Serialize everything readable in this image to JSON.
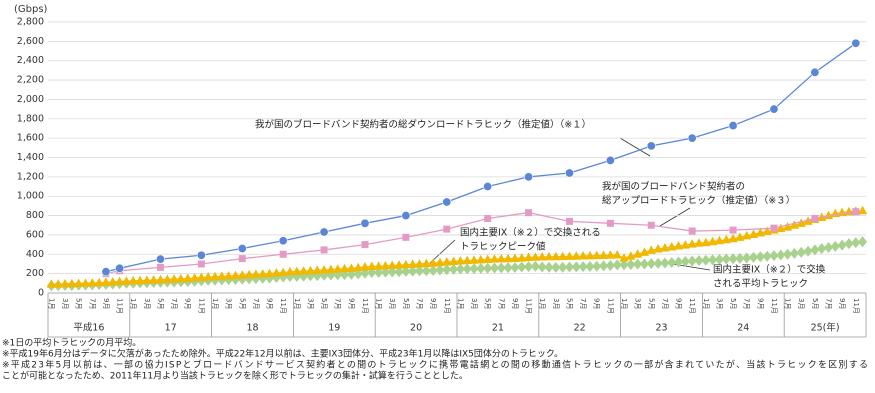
{
  "chart_data": {
    "type": "line",
    "y_unit": "(Gbps)",
    "categories": [
      "1月",
      null,
      "3月",
      null,
      "5月",
      null,
      "7月",
      null,
      "9月",
      null,
      "11月",
      null,
      "1月",
      null,
      "3月",
      null,
      "5月",
      null,
      "7月",
      null,
      "9月",
      null,
      "11月",
      null,
      "1月",
      null,
      "3月",
      null,
      "5月",
      null,
      "7月",
      null,
      "9月",
      null,
      "11月",
      null,
      "1月",
      null,
      "3月",
      null,
      "5月",
      null,
      "7月",
      null,
      "9月",
      null,
      "11月",
      null,
      "1月",
      null,
      "3月",
      null,
      "5月",
      null,
      "7月",
      null,
      "9月",
      null,
      "11月",
      null,
      "1月",
      null,
      "3月",
      null,
      "5月",
      null,
      "7月",
      null,
      "9月",
      null,
      "11月",
      null,
      "1月",
      null,
      "3月",
      null,
      "5月",
      null,
      "7月",
      null,
      "9月",
      null,
      "11月",
      null,
      "1月",
      null,
      "3月",
      null,
      "5月",
      null,
      "7月",
      null,
      "9月",
      null,
      "11月",
      null,
      "1月",
      null,
      "3月",
      null,
      "5月",
      null,
      "7月",
      null,
      "9月",
      null,
      "11月",
      null,
      "1月",
      null,
      "3月",
      null,
      "5月",
      null,
      "7月",
      null,
      "9月",
      null,
      "11月",
      null
    ],
    "years": [
      "平成16",
      "17",
      "18",
      "19",
      "20",
      "21",
      "22",
      "23",
      "24",
      "25(年)"
    ],
    "ylim": [
      0,
      2800
    ],
    "yticks": [
      0,
      200,
      400,
      600,
      800,
      {
        "value": 1000,
        "label": "1,000"
      },
      {
        "value": 1200,
        "label": "1,200"
      },
      {
        "value": 1400,
        "label": "1,400"
      },
      {
        "value": 1600,
        "label": "1,600"
      },
      {
        "value": 1800,
        "label": "1,800"
      },
      {
        "value": 2000,
        "label": "2,000"
      },
      {
        "value": 2200,
        "label": "2,200"
      },
      {
        "value": 2400,
        "label": "2,400"
      },
      {
        "value": 2600,
        "label": "2,600"
      },
      {
        "value": 2800,
        "label": "2,800"
      }
    ],
    "grid": true,
    "series": [
      {
        "name": [
          "我が国のブロードバンド契約者の総ダウンロードトラヒック（推定値）（※１）"
        ],
        "color": "#5b86d6",
        "marker": "circle",
        "values": [
          null,
          null,
          null,
          null,
          null,
          null,
          null,
          null,
          220,
          null,
          255,
          null,
          null,
          null,
          null,
          null,
          350,
          null,
          null,
          null,
          null,
          null,
          390,
          null,
          null,
          null,
          null,
          null,
          460,
          null,
          null,
          null,
          null,
          null,
          540,
          null,
          null,
          null,
          null,
          null,
          630,
          null,
          null,
          null,
          null,
          null,
          720,
          null,
          null,
          null,
          null,
          null,
          800,
          null,
          null,
          null,
          null,
          null,
          940,
          null,
          null,
          null,
          null,
          null,
          1100,
          null,
          null,
          null,
          null,
          null,
          1200,
          null,
          null,
          null,
          null,
          null,
          1240,
          null,
          null,
          null,
          null,
          null,
          1370,
          null,
          null,
          null,
          null,
          null,
          1520,
          null,
          null,
          null,
          null,
          null,
          1600,
          null,
          null,
          null,
          null,
          null,
          1730,
          null,
          null,
          null,
          null,
          null,
          1900,
          null,
          null,
          null,
          null,
          null,
          2280,
          null,
          null,
          null,
          null,
          null,
          2580,
          null
        ]
      },
      {
        "name": [
          "我が国のブロードバンド契約者の",
          "総アップロードトラヒック（推定値）（※３）"
        ],
        "color": "#e39bc6",
        "marker": "square",
        "values": [
          null,
          null,
          null,
          null,
          null,
          null,
          null,
          null,
          200,
          null,
          230,
          null,
          null,
          null,
          null,
          null,
          265,
          null,
          null,
          null,
          null,
          null,
          300,
          null,
          null,
          null,
          null,
          null,
          355,
          null,
          null,
          null,
          null,
          null,
          400,
          null,
          null,
          null,
          null,
          null,
          445,
          null,
          null,
          null,
          null,
          null,
          500,
          null,
          null,
          null,
          null,
          null,
          575,
          null,
          null,
          null,
          null,
          null,
          660,
          null,
          null,
          null,
          null,
          null,
          770,
          null,
          null,
          null,
          null,
          null,
          830,
          null,
          null,
          null,
          null,
          null,
          740,
          null,
          null,
          null,
          null,
          null,
          720,
          null,
          null,
          null,
          null,
          null,
          700,
          null,
          null,
          null,
          null,
          null,
          640,
          null,
          null,
          null,
          null,
          null,
          650,
          null,
          null,
          null,
          null,
          null,
          670,
          null,
          null,
          null,
          null,
          null,
          770,
          null,
          null,
          null,
          null,
          null,
          840,
          null
        ]
      },
      {
        "name": [
          "国内主要IX（※２）で交換される",
          "トラヒックピーク値"
        ],
        "color": "#f0b800",
        "marker": "triangle",
        "values": [
          90,
          92,
          94,
          96,
          98,
          100,
          103,
          106,
          110,
          114,
          118,
          122,
          125,
          128,
          131,
          134,
          137,
          140,
          143,
          146,
          150,
          155,
          160,
          165,
          168,
          172,
          176,
          180,
          184,
          188,
          192,
          196,
          200,
          206,
          212,
          218,
          222,
          226,
          230,
          234,
          238,
          242,
          246,
          250,
          255,
          262,
          268,
          274,
          276,
          280,
          284,
          288,
          292,
          296,
          300,
          304,
          308,
          314,
          320,
          326,
          330,
          334,
          338,
          342,
          346,
          350,
          352,
          354,
          356,
          360,
          365,
          370,
          372,
          374,
          375,
          376,
          378,
          380,
          382,
          384,
          386,
          388,
          390,
          392,
          360,
          380,
          400,
          420,
          440,
          455,
          465,
          475,
          485,
          495,
          505,
          515,
          520,
          530,
          540,
          550,
          560,
          575,
          590,
          605,
          620,
          635,
          650,
          665,
          680,
          700,
          720,
          740,
          760,
          780,
          800,
          820,
          830,
          840,
          845,
          850
        ]
      },
      {
        "name": [
          "国内主要IX（※２）で交換",
          "される平均トラヒック"
        ],
        "color": "#a9d18e",
        "marker": "diamond",
        "values": [
          75,
          76,
          77,
          78,
          80,
          82,
          84,
          86,
          88,
          92,
          96,
          100,
          102,
          104,
          106,
          108,
          110,
          112,
          114,
          116,
          118,
          122,
          126,
          130,
          132,
          135,
          138,
          140,
          143,
          146,
          149,
          152,
          155,
          160,
          165,
          170,
          172,
          175,
          178,
          180,
          183,
          186,
          188,
          190,
          193,
          198,
          205,
          210,
          212,
          215,
          218,
          220,
          223,
          226,
          228,
          230,
          233,
          238,
          242,
          246,
          248,
          250,
          252,
          254,
          256,
          258,
          260,
          262,
          264,
          268,
          272,
          276,
          268,
          266,
          265,
          266,
          268,
          270,
          272,
          274,
          276,
          280,
          284,
          290,
          292,
          295,
          298,
          300,
          303,
          306,
          310,
          315,
          320,
          325,
          330,
          335,
          338,
          342,
          346,
          350,
          354,
          358,
          362,
          368,
          374,
          380,
          386,
          392,
          400,
          410,
          420,
          432,
          445,
          458,
          470,
          482,
          495,
          510,
          520,
          530
        ]
      }
    ],
    "footnotes": [
      "※1日の平均トラヒックの月平均。",
      "※平成19年6月分はデータに欠落があったため除外。平成22年12月以前は、主要IX3団体分、平成23年1月以降はIX5団体分のトラヒック。",
      "※平成23年5月以前は、一部の協力ISPとブロードバンドサービス契約者との間のトラヒックに携帯電話網との間の移動通信トラヒックの一部が含まれていたが、当該トラヒックを区別する",
      "ことが可能となったため、2011年11月より当該トラヒックを除く形でトラヒックの集計・試算を行うこととした。"
    ]
  }
}
